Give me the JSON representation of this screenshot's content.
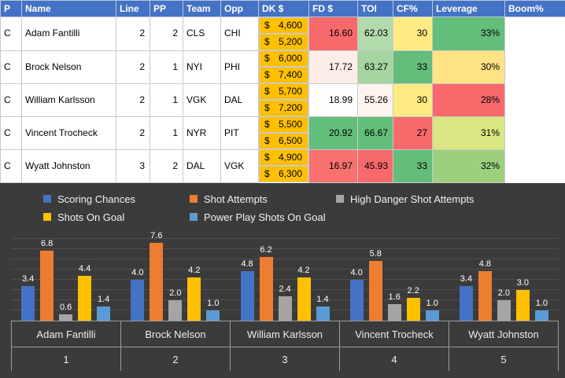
{
  "table": {
    "header_bg": "#4472C4",
    "salary_bg": "#FFC000",
    "headers": [
      "P",
      "Name",
      "Line",
      "PP",
      "Team",
      "Opp",
      "DK $",
      "FD $",
      "TOI",
      "CF%",
      "Leverage",
      "Boom%"
    ],
    "rows": [
      {
        "cells": [
          "C",
          "Adam Fantilli",
          "2",
          "2",
          "CLS",
          "CHI",
          "$ 4,600",
          "$ 5,200",
          "16.60",
          "62.03",
          "30",
          "33%"
        ],
        "bg": [
          "",
          "",
          "",
          "",
          "",
          "",
          "#FFC000",
          "#FFC000",
          "#F8696B",
          "#B3DAAC",
          "#FFEB84",
          "#63BE7B"
        ]
      },
      {
        "cells": [
          "C",
          "Brock Nelson",
          "2",
          "1",
          "NYI",
          "PHI",
          "$ 6,000",
          "$ 7,400",
          "17.72",
          "63.27",
          "33",
          "30%"
        ],
        "bg": [
          "",
          "",
          "",
          "",
          "",
          "",
          "#FFC000",
          "#FFC000",
          "#FDEDE9",
          "#A4D5A0",
          "#63BE7B",
          "#FFE283"
        ]
      },
      {
        "cells": [
          "C",
          "William Karlsson",
          "2",
          "1",
          "VGK",
          "DAL",
          "$ 5,700",
          "$ 7,200",
          "18.99",
          "55.26",
          "30",
          "28%"
        ],
        "bg": [
          "",
          "",
          "",
          "",
          "",
          "",
          "#FFC000",
          "#FFC000",
          "#FDFDFB",
          "#FEF4EE",
          "#FFEB84",
          "#F8696B"
        ]
      },
      {
        "cells": [
          "C",
          "Vincent Trocheck",
          "2",
          "1",
          "NYR",
          "PIT",
          "$ 5,500",
          "$ 6,500",
          "20.92",
          "66.67",
          "27",
          "31%"
        ],
        "bg": [
          "",
          "",
          "",
          "",
          "",
          "",
          "#FFC000",
          "#FFC000",
          "#63BE7B",
          "#63BE7B",
          "#F8696B",
          "#D9E682"
        ]
      },
      {
        "cells": [
          "C",
          "Wyatt Johnston",
          "3",
          "2",
          "DAL",
          "VGK",
          "$ 4,900",
          "$ 6,300",
          "16.97",
          "45.93",
          "33",
          "32%"
        ],
        "bg": [
          "",
          "",
          "",
          "",
          "",
          "",
          "#FFC000",
          "#FFC000",
          "#F8716E",
          "#F8696B",
          "#63BE7B",
          "#9CD07E"
        ]
      }
    ]
  },
  "chart_data": {
    "type": "bar",
    "background": "#3B3B3B",
    "title": "",
    "categories": [
      "Adam Fantilli",
      "Brock Nelson",
      "William Karlsson",
      "Vincent Trocheck",
      "Wyatt Johnston"
    ],
    "category_numbers": [
      "1",
      "2",
      "3",
      "4",
      "5"
    ],
    "series": [
      {
        "name": "Scoring Chances",
        "color": "#4472C4",
        "values": [
          3.4,
          4.0,
          4.8,
          4.0,
          3.4
        ]
      },
      {
        "name": "Shot Attempts",
        "color": "#ED7D31",
        "values": [
          6.8,
          7.6,
          6.2,
          5.8,
          4.8
        ]
      },
      {
        "name": "High Danger Shot Attempts",
        "color": "#A5A5A5",
        "values": [
          0.6,
          2.0,
          2.4,
          1.6,
          2.0
        ]
      },
      {
        "name": "Shots On Goal",
        "color": "#FFC000",
        "values": [
          4.4,
          4.2,
          4.2,
          2.2,
          3.0
        ]
      },
      {
        "name": "Power Play Shots On Goal",
        "color": "#5B9BD5",
        "values": [
          1.4,
          1.0,
          1.4,
          1.0,
          1.0
        ]
      }
    ],
    "ylim": [
      0,
      8
    ],
    "grid": true,
    "legend_position": "top",
    "data_labels": true
  }
}
